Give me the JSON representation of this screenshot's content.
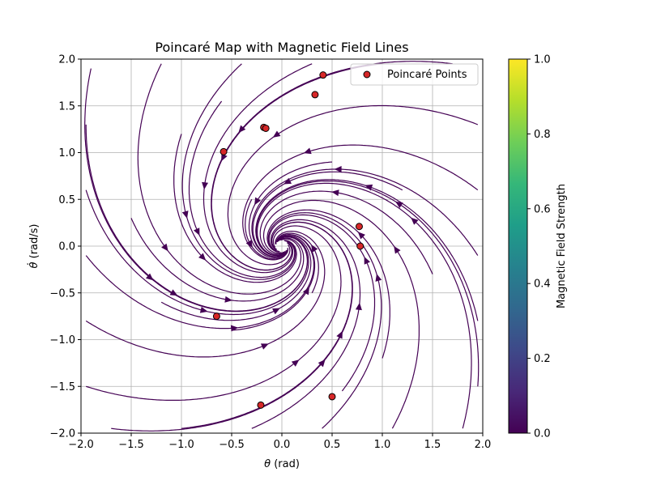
{
  "chart_data": {
    "type": "scatter",
    "title": "Poincaré Map with Magnetic Field Lines",
    "xlabel_symbol": "θ",
    "xlabel_unit": " (rad)",
    "ylabel_symbol": "θ̇",
    "ylabel_unit": " (rad/s)",
    "xlim": [
      -2.0,
      2.0
    ],
    "ylim": [
      -2.0,
      2.0
    ],
    "x_ticks": [
      -2.0,
      -1.5,
      -1.0,
      -0.5,
      0.0,
      0.5,
      1.0,
      1.5,
      2.0
    ],
    "y_ticks": [
      -2.0,
      -1.5,
      -1.0,
      -0.5,
      0.0,
      0.5,
      1.0,
      1.5,
      2.0
    ],
    "x_tick_labels": [
      "−2.0",
      "−1.5",
      "−1.0",
      "−0.5",
      "0.0",
      "0.5",
      "1.0",
      "1.5",
      "2.0"
    ],
    "y_tick_labels": [
      "−2.0",
      "−1.5",
      "−1.0",
      "−0.5",
      "0.0",
      "0.5",
      "1.0",
      "1.5",
      "2.0"
    ],
    "grid": true,
    "legend": {
      "label": "Poincaré Points",
      "placement": "top-right"
    },
    "poincare_points": [
      {
        "x": 0.41,
        "y": 1.83
      },
      {
        "x": 0.33,
        "y": 1.62
      },
      {
        "x": -0.18,
        "y": 1.27
      },
      {
        "x": -0.16,
        "y": 1.26
      },
      {
        "x": -0.58,
        "y": 1.01
      },
      {
        "x": 0.77,
        "y": 0.21
      },
      {
        "x": 0.78,
        "y": 0.0
      },
      {
        "x": -0.65,
        "y": -0.75
      },
      {
        "x": 0.5,
        "y": -1.61
      },
      {
        "x": -0.21,
        "y": -1.7
      }
    ],
    "streamplot": {
      "field": "spiral",
      "line_color": "#440154",
      "start_points": [
        [
          -1.9,
          1.9
        ],
        [
          -1.2,
          1.95
        ],
        [
          -0.4,
          1.95
        ],
        [
          0.3,
          1.95
        ],
        [
          1.0,
          1.95
        ],
        [
          1.7,
          1.95
        ],
        [
          -1.95,
          1.3
        ],
        [
          -1.95,
          0.6
        ],
        [
          -1.95,
          -0.1
        ],
        [
          -1.95,
          -0.8
        ],
        [
          -1.95,
          -1.5
        ],
        [
          1.95,
          1.3
        ],
        [
          1.95,
          0.6
        ],
        [
          1.95,
          -0.1
        ],
        [
          1.95,
          -0.8
        ],
        [
          1.95,
          -1.5
        ],
        [
          -1.7,
          -1.95
        ],
        [
          -1.0,
          -1.95
        ],
        [
          -0.3,
          -1.95
        ],
        [
          0.4,
          -1.95
        ],
        [
          1.1,
          -1.95
        ],
        [
          1.8,
          -1.95
        ],
        [
          -1.0,
          1.2
        ],
        [
          1.0,
          -1.2
        ],
        [
          -1.2,
          -0.6
        ],
        [
          1.2,
          0.6
        ],
        [
          -0.6,
          1.55
        ],
        [
          0.6,
          -1.55
        ],
        [
          -1.5,
          0.3
        ],
        [
          1.5,
          -0.3
        ],
        [
          -0.3,
          0.5
        ],
        [
          0.3,
          -0.5
        ],
        [
          0.5,
          0.9
        ],
        [
          -0.5,
          -0.9
        ]
      ]
    },
    "colorbar": {
      "label": "Magnetic Field Strength",
      "min": 0.0,
      "max": 1.0,
      "ticks": [
        0.0,
        0.2,
        0.4,
        0.6,
        0.8,
        1.0
      ],
      "tick_labels": [
        "0.0",
        "0.2",
        "0.4",
        "0.6",
        "0.8",
        "1.0"
      ],
      "colormap": "viridis",
      "stops": [
        "#440154",
        "#482878",
        "#3e4989",
        "#31688e",
        "#26828e",
        "#1f9e89",
        "#35b779",
        "#6ece58",
        "#b5de2b",
        "#fde725"
      ]
    },
    "marker_fill": "#d62728",
    "marker_edge": "#000000"
  }
}
